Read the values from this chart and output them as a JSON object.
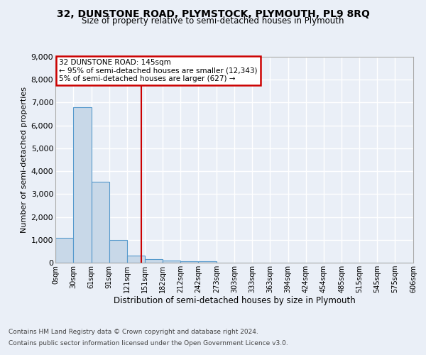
{
  "title1": "32, DUNSTONE ROAD, PLYMSTOCK, PLYMOUTH, PL9 8RQ",
  "title2": "Size of property relative to semi-detached houses in Plymouth",
  "xlabel": "Distribution of semi-detached houses by size in Plymouth",
  "ylabel": "Number of semi-detached properties",
  "footer1": "Contains HM Land Registry data © Crown copyright and database right 2024.",
  "footer2": "Contains public sector information licensed under the Open Government Licence v3.0.",
  "annotation_line1": "32 DUNSTONE ROAD: 145sqm",
  "annotation_line2": "← 95% of semi-detached houses are smaller (12,343)",
  "annotation_line3": "5% of semi-detached houses are larger (627) →",
  "property_size": 145,
  "bin_edges": [
    0,
    30,
    61,
    91,
    121,
    151,
    182,
    212,
    242,
    273,
    303,
    333,
    363,
    394,
    424,
    454,
    485,
    515,
    545,
    575,
    606
  ],
  "bar_values": [
    1100,
    6800,
    3550,
    1000,
    325,
    140,
    100,
    75,
    55,
    0,
    0,
    0,
    0,
    0,
    0,
    0,
    0,
    0,
    0,
    0
  ],
  "bar_color": "#c8d8e8",
  "bar_edge_color": "#5599cc",
  "marker_color": "#cc0000",
  "ylim": [
    0,
    9000
  ],
  "yticks": [
    0,
    1000,
    2000,
    3000,
    4000,
    5000,
    6000,
    7000,
    8000,
    9000
  ],
  "bg_color": "#eaeff7",
  "plot_bg_color": "#eaeff7",
  "grid_color": "#ffffff",
  "annotation_box_color": "#cc0000"
}
